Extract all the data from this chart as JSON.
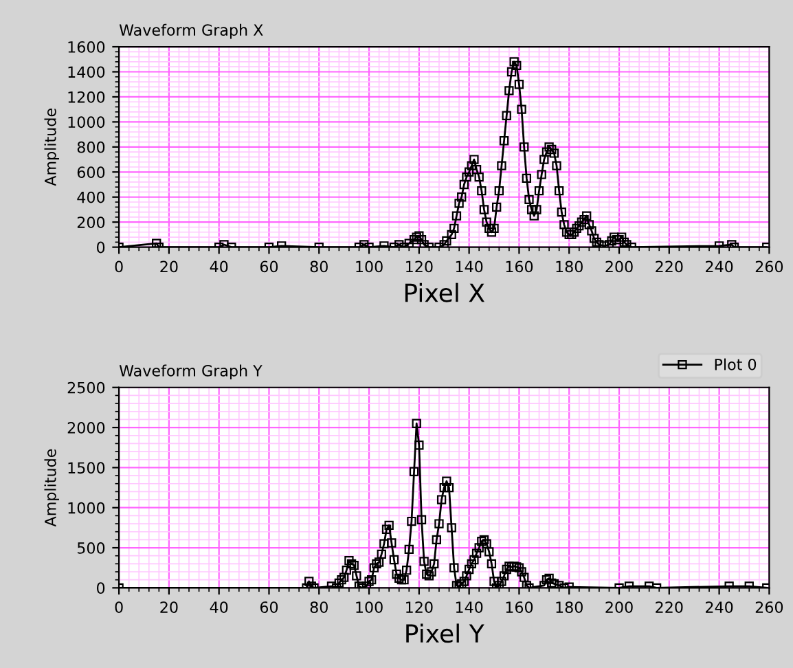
{
  "chart_data": [
    {
      "type": "line",
      "title": "Waveform Graph X",
      "xlabel": "Pixel X",
      "ylabel": "Amplitude",
      "xlim": [
        0,
        260
      ],
      "ylim": [
        0,
        1600
      ],
      "xticks": [
        0,
        {
          "value": 4,
          "label": null
        },
        {
          "value": 8,
          "label": null
        },
        {
          "value": 12,
          "label": null
        },
        {
          "value": 16,
          "label": null
        },
        20,
        {
          "value": 24,
          "label": null
        },
        {
          "value": 28,
          "label": null
        },
        {
          "value": 32,
          "label": null
        },
        {
          "value": 36,
          "label": null
        },
        40,
        {
          "value": 44,
          "label": null
        },
        {
          "value": 48,
          "label": null
        },
        {
          "value": 52,
          "label": null
        },
        {
          "value": 56,
          "label": null
        },
        60,
        {
          "value": 64,
          "label": null
        },
        {
          "value": 68,
          "label": null
        },
        {
          "value": 72,
          "label": null
        },
        {
          "value": 76,
          "label": null
        },
        80,
        {
          "value": 84,
          "label": null
        },
        {
          "value": 88,
          "label": null
        },
        {
          "value": 92,
          "label": null
        },
        {
          "value": 96,
          "label": null
        },
        100,
        {
          "value": 104,
          "label": null
        },
        {
          "value": 108,
          "label": null
        },
        {
          "value": 112,
          "label": null
        },
        {
          "value": 116,
          "label": null
        },
        120,
        {
          "value": 124,
          "label": null
        },
        {
          "value": 128,
          "label": null
        },
        {
          "value": 132,
          "label": null
        },
        {
          "value": 136,
          "label": null
        },
        140,
        {
          "value": 144,
          "label": null
        },
        {
          "value": 148,
          "label": null
        },
        {
          "value": 152,
          "label": null
        },
        {
          "value": 156,
          "label": null
        },
        160,
        {
          "value": 164,
          "label": null
        },
        {
          "value": 168,
          "label": null
        },
        {
          "value": 172,
          "label": null
        },
        {
          "value": 176,
          "label": null
        },
        180,
        {
          "value": 184,
          "label": null
        },
        {
          "value": 188,
          "label": null
        },
        {
          "value": 192,
          "label": null
        },
        {
          "value": 196,
          "label": null
        },
        200,
        {
          "value": 204,
          "label": null
        },
        {
          "value": 208,
          "label": null
        },
        {
          "value": 212,
          "label": null
        },
        {
          "value": 216,
          "label": null
        },
        220,
        {
          "value": 224,
          "label": null
        },
        {
          "value": 228,
          "label": null
        },
        {
          "value": 232,
          "label": null
        },
        {
          "value": 236,
          "label": null
        },
        240,
        {
          "value": 244,
          "label": null
        },
        {
          "value": 248,
          "label": null
        },
        {
          "value": 252,
          "label": null
        },
        {
          "value": 256,
          "label": null
        },
        260
      ],
      "yticks": [
        0,
        {
          "value": 40,
          "label": null
        },
        {
          "value": 80,
          "label": null
        },
        {
          "value": 120,
          "label": null
        },
        {
          "value": 160,
          "label": null
        },
        200,
        {
          "value": 240,
          "label": null
        },
        {
          "value": 280,
          "label": null
        },
        {
          "value": 320,
          "label": null
        },
        {
          "value": 360,
          "label": null
        },
        400,
        {
          "value": 440,
          "label": null
        },
        {
          "value": 480,
          "label": null
        },
        {
          "value": 520,
          "label": null
        },
        {
          "value": 560,
          "label": null
        },
        600,
        {
          "value": 640,
          "label": null
        },
        {
          "value": 680,
          "label": null
        },
        {
          "value": 720,
          "label": null
        },
        {
          "value": 760,
          "label": null
        },
        800,
        {
          "value": 840,
          "label": null
        },
        {
          "value": 880,
          "label": null
        },
        {
          "value": 920,
          "label": null
        },
        {
          "value": 960,
          "label": null
        },
        1000,
        {
          "value": 1040,
          "label": null
        },
        {
          "value": 1080,
          "label": null
        },
        {
          "value": 1120,
          "label": null
        },
        {
          "value": 1160,
          "label": null
        },
        1200,
        {
          "value": 1240,
          "label": null
        },
        {
          "value": 1280,
          "label": null
        },
        {
          "value": 1320,
          "label": null
        },
        {
          "value": 1360,
          "label": null
        },
        1400,
        {
          "value": 1440,
          "label": null
        },
        {
          "value": 1480,
          "label": null
        },
        {
          "value": 1520,
          "label": null
        },
        {
          "value": 1560,
          "label": null
        },
        1600
      ],
      "grid": true,
      "marker": "square",
      "line_style": "solid",
      "legend": false,
      "series": [
        {
          "color": "#000000",
          "x": [
            0,
            15,
            16,
            40,
            42,
            45,
            60,
            65,
            80,
            96,
            98,
            100,
            106,
            110,
            112,
            114,
            116,
            118,
            119,
            120,
            121,
            122,
            124,
            128,
            130,
            131,
            133,
            134,
            135,
            136,
            137,
            138,
            139,
            140,
            141,
            142,
            143,
            144,
            145,
            146,
            147,
            148,
            149,
            150,
            151,
            152,
            153,
            154,
            155,
            156,
            157,
            158,
            159,
            160,
            161,
            162,
            163,
            164,
            165,
            166,
            167,
            168,
            169,
            170,
            171,
            172,
            173,
            174,
            175,
            176,
            177,
            178,
            179,
            180,
            181,
            182,
            183,
            184,
            185,
            186,
            187,
            188,
            189,
            190,
            191,
            192,
            194,
            196,
            197,
            198,
            199,
            200,
            201,
            202,
            203,
            205,
            240,
            245,
            246,
            259
          ],
          "values": [
            0,
            30,
            0,
            0,
            20,
            0,
            0,
            10,
            0,
            0,
            20,
            0,
            10,
            0,
            20,
            0,
            30,
            60,
            80,
            90,
            60,
            20,
            0,
            0,
            20,
            50,
            100,
            150,
            250,
            350,
            400,
            500,
            560,
            600,
            650,
            700,
            620,
            560,
            450,
            300,
            200,
            150,
            120,
            150,
            320,
            450,
            650,
            850,
            1050,
            1250,
            1400,
            1480,
            1450,
            1300,
            1100,
            800,
            550,
            380,
            300,
            250,
            300,
            450,
            580,
            700,
            760,
            800,
            780,
            750,
            650,
            450,
            280,
            180,
            120,
            100,
            100,
            120,
            150,
            170,
            200,
            220,
            250,
            180,
            130,
            70,
            40,
            20,
            10,
            20,
            50,
            80,
            60,
            60,
            80,
            40,
            20,
            0,
            10,
            20,
            0,
            0
          ]
        }
      ]
    },
    {
      "type": "line",
      "title": "Waveform Graph Y",
      "xlabel": "Pixel Y",
      "ylabel": "Amplitude",
      "xlim": [
        0,
        260
      ],
      "ylim": [
        0,
        2500
      ],
      "xticks": [
        0,
        {
          "value": 4,
          "label": null
        },
        {
          "value": 8,
          "label": null
        },
        {
          "value": 12,
          "label": null
        },
        {
          "value": 16,
          "label": null
        },
        20,
        {
          "value": 24,
          "label": null
        },
        {
          "value": 28,
          "label": null
        },
        {
          "value": 32,
          "label": null
        },
        {
          "value": 36,
          "label": null
        },
        40,
        {
          "value": 44,
          "label": null
        },
        {
          "value": 48,
          "label": null
        },
        {
          "value": 52,
          "label": null
        },
        {
          "value": 56,
          "label": null
        },
        60,
        {
          "value": 64,
          "label": null
        },
        {
          "value": 68,
          "label": null
        },
        {
          "value": 72,
          "label": null
        },
        {
          "value": 76,
          "label": null
        },
        80,
        {
          "value": 84,
          "label": null
        },
        {
          "value": 88,
          "label": null
        },
        {
          "value": 92,
          "label": null
        },
        {
          "value": 96,
          "label": null
        },
        100,
        {
          "value": 104,
          "label": null
        },
        {
          "value": 108,
          "label": null
        },
        {
          "value": 112,
          "label": null
        },
        {
          "value": 116,
          "label": null
        },
        120,
        {
          "value": 124,
          "label": null
        },
        {
          "value": 128,
          "label": null
        },
        {
          "value": 132,
          "label": null
        },
        {
          "value": 136,
          "label": null
        },
        140,
        {
          "value": 144,
          "label": null
        },
        {
          "value": 148,
          "label": null
        },
        {
          "value": 152,
          "label": null
        },
        {
          "value": 156,
          "label": null
        },
        160,
        {
          "value": 164,
          "label": null
        },
        {
          "value": 168,
          "label": null
        },
        {
          "value": 172,
          "label": null
        },
        {
          "value": 176,
          "label": null
        },
        180,
        {
          "value": 184,
          "label": null
        },
        {
          "value": 188,
          "label": null
        },
        {
          "value": 192,
          "label": null
        },
        {
          "value": 196,
          "label": null
        },
        200,
        {
          "value": 204,
          "label": null
        },
        {
          "value": 208,
          "label": null
        },
        {
          "value": 212,
          "label": null
        },
        {
          "value": 216,
          "label": null
        },
        220,
        {
          "value": 224,
          "label": null
        },
        {
          "value": 228,
          "label": null
        },
        {
          "value": 232,
          "label": null
        },
        {
          "value": 236,
          "label": null
        },
        240,
        {
          "value": 244,
          "label": null
        },
        {
          "value": 248,
          "label": null
        },
        {
          "value": 252,
          "label": null
        },
        {
          "value": 256,
          "label": null
        },
        260
      ],
      "yticks": [
        0,
        {
          "value": 100,
          "label": null
        },
        {
          "value": 200,
          "label": null
        },
        {
          "value": 300,
          "label": null
        },
        {
          "value": 400,
          "label": null
        },
        500,
        {
          "value": 600,
          "label": null
        },
        {
          "value": 700,
          "label": null
        },
        {
          "value": 800,
          "label": null
        },
        {
          "value": 900,
          "label": null
        },
        1000,
        {
          "value": 1100,
          "label": null
        },
        {
          "value": 1200,
          "label": null
        },
        {
          "value": 1300,
          "label": null
        },
        {
          "value": 1400,
          "label": null
        },
        1500,
        {
          "value": 1600,
          "label": null
        },
        {
          "value": 1700,
          "label": null
        },
        {
          "value": 1800,
          "label": null
        },
        {
          "value": 1900,
          "label": null
        },
        2000,
        {
          "value": 2100,
          "label": null
        },
        {
          "value": 2200,
          "label": null
        },
        {
          "value": 2300,
          "label": null
        },
        {
          "value": 2400,
          "label": null
        },
        2500
      ],
      "grid": true,
      "marker": "square",
      "line_style": "solid",
      "legend": "top right",
      "series": [
        {
          "name": "Plot 0",
          "color": "#000000",
          "x": [
            0,
            75,
            76,
            77,
            78,
            85,
            87,
            88,
            89,
            90,
            91,
            92,
            93,
            94,
            95,
            96,
            97,
            99,
            100,
            101,
            102,
            103,
            104,
            105,
            106,
            107,
            108,
            109,
            110,
            111,
            112,
            113,
            114,
            115,
            116,
            117,
            118,
            119,
            120,
            121,
            122,
            123,
            124,
            125,
            126,
            127,
            128,
            129,
            130,
            131,
            132,
            133,
            134,
            135,
            136,
            137,
            138,
            139,
            140,
            141,
            142,
            143,
            144,
            145,
            146,
            147,
            148,
            149,
            150,
            151,
            152,
            153,
            154,
            155,
            156,
            157,
            158,
            159,
            160,
            161,
            162,
            163,
            164,
            170,
            171,
            172,
            173,
            174,
            176,
            178,
            180,
            200,
            204,
            212,
            215,
            244,
            252,
            259
          ],
          "values": [
            0,
            0,
            80,
            20,
            0,
            20,
            0,
            60,
            100,
            130,
            220,
            340,
            300,
            280,
            150,
            20,
            0,
            20,
            80,
            100,
            250,
            300,
            320,
            420,
            550,
            730,
            780,
            560,
            350,
            170,
            120,
            100,
            100,
            220,
            480,
            830,
            1450,
            2050,
            1780,
            850,
            330,
            170,
            150,
            200,
            300,
            600,
            800,
            1100,
            1250,
            1330,
            1250,
            750,
            250,
            30,
            20,
            50,
            80,
            150,
            230,
            300,
            350,
            430,
            500,
            580,
            600,
            550,
            450,
            300,
            80,
            0,
            30,
            80,
            150,
            230,
            270,
            260,
            270,
            260,
            250,
            200,
            130,
            30,
            0,
            30,
            100,
            120,
            60,
            50,
            30,
            0,
            10,
            0,
            20,
            20,
            0,
            20,
            20,
            0
          ]
        }
      ]
    }
  ]
}
